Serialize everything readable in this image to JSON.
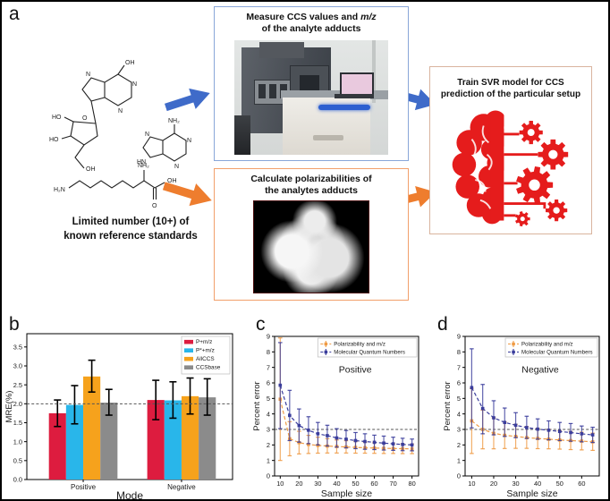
{
  "panels": {
    "a": "a",
    "b": "b",
    "c": "c",
    "d": "d"
  },
  "panel_a": {
    "caption1": "Limited number (10+) of",
    "caption2": "known reference standards",
    "measure_box": {
      "t1a": "Measure CCS values and ",
      "t1b": "m/z",
      "t2": "of the analyte adducts"
    },
    "polar_box": {
      "t1": "Calculate polarizabilities of",
      "t2": "the analytes adducts"
    },
    "svr_box": {
      "t1": "Train SVR model for CCS",
      "t2": "prediction of the particular setup"
    },
    "atom_labels": {
      "n": "N",
      "hn": "HN",
      "oh": "OH",
      "ho": "HO",
      "o": "O",
      "nh2": "NH₂",
      "h2n": "H₂N"
    },
    "colors": {
      "blue_arrow": "#3f6bc9",
      "orange_arrow": "#ee7d2e",
      "measure_border": "#89a6d8",
      "polar_border": "#f2a06b",
      "svr_border": "#d9b49e",
      "brain_red": "#e51c1c"
    }
  },
  "chart_data": [
    {
      "type": "bar",
      "panel": "b",
      "xlabel": "Mode",
      "ylabel": "MRE(%)",
      "categories": [
        "Positive",
        "Negative"
      ],
      "ylim": [
        0,
        3.85
      ],
      "yticks": [
        0.0,
        0.5,
        1.0,
        1.5,
        2.0,
        2.5,
        3.0,
        3.5
      ],
      "reference_line": 2.0,
      "grid": false,
      "legend_position": "upper right",
      "series": [
        {
          "name": "P+m/z",
          "color": "#dd1c3f",
          "values": [
            1.75,
            2.1
          ],
          "err_low": [
            1.4,
            1.58
          ],
          "err_high": [
            2.1,
            2.62
          ]
        },
        {
          "name": "P*+m/z",
          "color": "#29b6ea",
          "values": [
            1.97,
            2.09
          ],
          "err_low": [
            1.47,
            1.62
          ],
          "err_high": [
            2.48,
            2.58
          ]
        },
        {
          "name": "AllCCS",
          "color": "#f6a21c",
          "values": [
            2.72,
            2.2
          ],
          "err_low": [
            2.31,
            1.73
          ],
          "err_high": [
            3.15,
            2.68
          ]
        },
        {
          "name": "CCSbase",
          "color": "#8b8b8b",
          "values": [
            2.03,
            2.17
          ],
          "err_low": [
            1.7,
            1.7
          ],
          "err_high": [
            2.38,
            2.66
          ]
        }
      ]
    },
    {
      "type": "line",
      "panel": "c",
      "inner_title": "Positive",
      "xlabel": "Sample size",
      "ylabel": "Percent error",
      "xlim": [
        7,
        83.5
      ],
      "ylim": [
        0,
        9
      ],
      "xticks": [
        10,
        20,
        30,
        40,
        50,
        60,
        70,
        80
      ],
      "yticks": [
        0,
        1,
        2,
        3,
        4,
        5,
        6,
        7,
        8,
        9
      ],
      "reference_line": 3.0,
      "legend_position": "upper right",
      "x": [
        10,
        15,
        20,
        25,
        30,
        35,
        40,
        45,
        50,
        55,
        60,
        65,
        70,
        75,
        80
      ],
      "series": [
        {
          "name": "Polarizability and m/z",
          "color": "#ef9b45",
          "y": [
            4.95,
            2.4,
            2.15,
            2.03,
            1.97,
            1.93,
            1.9,
            1.87,
            1.84,
            1.82,
            1.8,
            1.78,
            1.77,
            1.76,
            1.75
          ],
          "err_low": [
            1.0,
            1.3,
            1.42,
            1.45,
            1.47,
            1.48,
            1.48,
            1.48,
            1.47,
            1.47,
            1.46,
            1.45,
            1.45,
            1.44,
            1.44
          ],
          "err_high": [
            8.9,
            3.5,
            2.88,
            2.62,
            2.5,
            2.4,
            2.32,
            2.27,
            2.22,
            2.18,
            2.14,
            2.11,
            2.09,
            2.07,
            2.06
          ]
        },
        {
          "name": "Molecular Quantum Numbers",
          "color": "#3a3d9c",
          "y": [
            5.85,
            3.9,
            3.25,
            2.95,
            2.72,
            2.6,
            2.45,
            2.37,
            2.28,
            2.22,
            2.17,
            2.12,
            2.07,
            2.03,
            2.0
          ],
          "err_low": [
            3.05,
            2.28,
            2.18,
            2.08,
            2.0,
            1.93,
            1.86,
            1.81,
            1.76,
            1.72,
            1.7,
            1.67,
            1.65,
            1.63,
            1.62
          ],
          "err_high": [
            8.6,
            5.52,
            4.32,
            3.82,
            3.45,
            3.27,
            3.05,
            2.93,
            2.8,
            2.72,
            2.63,
            2.57,
            2.5,
            2.43,
            2.38
          ]
        }
      ]
    },
    {
      "type": "line",
      "panel": "d",
      "inner_title": "Negative",
      "xlabel": "Sample size",
      "ylabel": "Percent error",
      "xlim": [
        7,
        68
      ],
      "ylim": [
        0,
        9
      ],
      "xticks": [
        10,
        20,
        30,
        40,
        50,
        60
      ],
      "yticks": [
        0,
        1,
        2,
        3,
        4,
        5,
        6,
        7,
        8,
        9
      ],
      "reference_line": 3.0,
      "legend_position": "upper right",
      "x": [
        10,
        15,
        20,
        25,
        30,
        35,
        40,
        45,
        50,
        55,
        60,
        65
      ],
      "series": [
        {
          "name": "Polarizability and m/z",
          "color": "#ef9b45",
          "y": [
            3.55,
            3.0,
            2.75,
            2.62,
            2.55,
            2.47,
            2.42,
            2.37,
            2.32,
            2.28,
            2.25,
            2.2
          ],
          "err_low": [
            1.45,
            1.75,
            1.75,
            1.77,
            1.78,
            1.78,
            1.76,
            1.75,
            1.73,
            1.7,
            1.68,
            1.65
          ],
          "err_high": [
            5.65,
            4.25,
            3.75,
            3.48,
            3.33,
            3.18,
            3.08,
            3.0,
            2.92,
            2.87,
            2.82,
            2.76
          ]
        },
        {
          "name": "Molecular Quantum Numbers",
          "color": "#3a3d9c",
          "y": [
            5.7,
            4.35,
            3.75,
            3.45,
            3.27,
            3.12,
            3.02,
            2.95,
            2.87,
            2.8,
            2.72,
            2.65
          ],
          "err_low": [
            3.1,
            2.72,
            2.65,
            2.55,
            2.47,
            2.42,
            2.37,
            2.33,
            2.28,
            2.24,
            2.2,
            2.16
          ],
          "err_high": [
            8.2,
            5.9,
            4.85,
            4.38,
            4.08,
            3.85,
            3.68,
            3.55,
            3.45,
            3.38,
            3.22,
            3.14
          ]
        }
      ]
    }
  ]
}
